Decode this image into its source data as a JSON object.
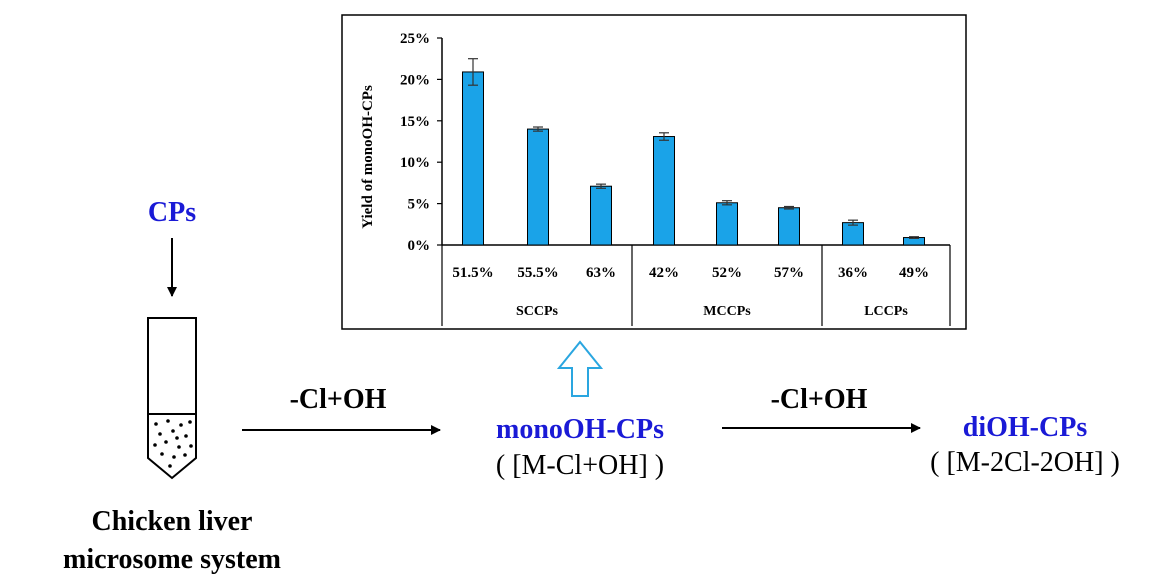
{
  "diagram": {
    "input_label": "CPs",
    "system_label_line1": "Chicken liver",
    "system_label_line2": "microsome system",
    "step1_label": "-Cl+OH",
    "step2_label": "-Cl+OH",
    "product1_name": "monoOH-CPs",
    "product1_formula": "( [M-Cl+OH] )",
    "product2_name": "diOH-CPs",
    "product2_formula": "( [M-2Cl-2OH] )",
    "colors": {
      "product_blue": "#1a1ad6",
      "bar_fill": "#1aa3e8",
      "hollow_arrow": "#2aa6e0"
    }
  },
  "chart_data": {
    "type": "bar",
    "ylabel": "Yield of monoOH-CPs",
    "ylim": [
      0,
      25
    ],
    "yticks": [
      "0%",
      "5%",
      "10%",
      "15%",
      "20%",
      "25%"
    ],
    "categories": [
      "51.5%",
      "55.5%",
      "63%",
      "42%",
      "52%",
      "57%",
      "36%",
      "49%"
    ],
    "values": [
      20.9,
      14.0,
      7.1,
      13.1,
      5.1,
      4.5,
      2.7,
      0.9
    ],
    "errors": [
      1.6,
      0.25,
      0.25,
      0.45,
      0.25,
      0.15,
      0.3,
      0.1
    ],
    "groups": [
      {
        "name": "SCCPs",
        "count": 3
      },
      {
        "name": "MCCPs",
        "count": 3
      },
      {
        "name": "LCCPs",
        "count": 2
      }
    ]
  }
}
